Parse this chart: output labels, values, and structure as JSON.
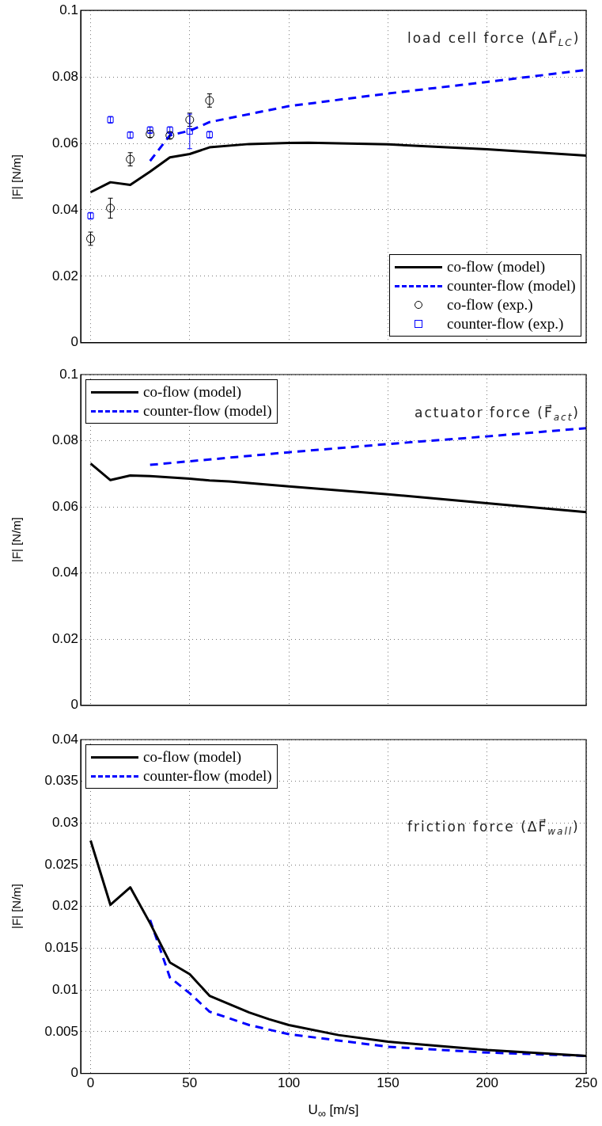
{
  "chart_data": [
    {
      "type": "line",
      "ylabel": "|F| [N/m]",
      "xlim": [
        -5,
        250
      ],
      "xticks": [
        0,
        50,
        100,
        150,
        200,
        250
      ],
      "ylim": [
        0,
        0.1
      ],
      "yticks": [
        0,
        0.02,
        0.04,
        0.06,
        0.08,
        0.1
      ],
      "grid": true,
      "legend": "bottom right",
      "tick_labels": "y",
      "annotations": [
        "load cell force (ΔF⃗$_{LC}$)"
      ],
      "series": [
        {
          "name": "co-flow (model)",
          "type": "line",
          "color": "#000000",
          "line_style": "solid",
          "x": [
            0,
            10,
            20,
            30,
            40,
            50,
            60,
            80,
            100,
            110,
            150,
            200,
            250
          ],
          "values": [
            0.0453,
            0.0483,
            0.0475,
            0.0515,
            0.0558,
            0.0568,
            0.0588,
            0.0598,
            0.0601,
            0.0602,
            0.0597,
            0.0582,
            0.0563
          ]
        },
        {
          "name": "counter-flow (model)",
          "type": "line",
          "color": "#0000ff",
          "line_style": "dashed",
          "x": [
            30,
            40,
            50,
            60,
            100,
            150,
            200,
            250
          ],
          "values": [
            0.0547,
            0.0624,
            0.0638,
            0.0664,
            0.0712,
            0.075,
            0.0785,
            0.0821
          ]
        },
        {
          "name": "co-flow (exp.)",
          "type": "scatter",
          "color": "#000000",
          "marker": "circle",
          "x": [
            0,
            10,
            20,
            30,
            40,
            50,
            60
          ],
          "values": [
            0.0313,
            0.0405,
            0.0552,
            0.0628,
            0.0624,
            0.0671,
            0.0729
          ],
          "errors": [
            0.002,
            0.003,
            0.002,
            0.001,
            0.001,
            0.002,
            0.002
          ]
        },
        {
          "name": "counter-flow (exp.)",
          "type": "scatter",
          "color": "#0000ff",
          "marker": "square",
          "x": [
            0,
            10,
            20,
            30,
            40,
            50,
            60
          ],
          "values": [
            0.0382,
            0.0671,
            0.0625,
            0.064,
            0.064,
            0.0636,
            0.0626
          ],
          "errors": [
            0.001,
            0.001,
            0.001,
            0.001,
            0.001,
            0.0052,
            0.001
          ]
        }
      ]
    },
    {
      "type": "line",
      "ylabel": "|F| [N/m]",
      "xlim": [
        -5,
        250
      ],
      "xticks": [
        0,
        50,
        100,
        150,
        200,
        250
      ],
      "ylim": [
        0,
        0.1
      ],
      "yticks": [
        0,
        0.02,
        0.04,
        0.06,
        0.08,
        0.1
      ],
      "grid": true,
      "legend": "top left",
      "tick_labels": "y",
      "annotations": [
        "actuator force (F⃗$_{act}$)"
      ],
      "series": [
        {
          "name": "co-flow (model)",
          "type": "line",
          "color": "#000000",
          "line_style": "solid",
          "x": [
            0,
            10,
            20,
            30,
            50,
            60,
            70,
            100,
            150,
            200,
            250
          ],
          "values": [
            0.0731,
            0.0681,
            0.0695,
            0.0693,
            0.0685,
            0.068,
            0.0677,
            0.0662,
            0.0638,
            0.0611,
            0.0584
          ]
        },
        {
          "name": "counter-flow (model)",
          "type": "line",
          "color": "#0000ff",
          "line_style": "dashed",
          "x": [
            30,
            100,
            150,
            200,
            250
          ],
          "values": [
            0.0727,
            0.0765,
            0.079,
            0.0813,
            0.0838
          ]
        }
      ]
    },
    {
      "type": "line",
      "xlabel": "U$_{∞}$ [m/s]",
      "ylabel": "|F| [N/m]",
      "xlim": [
        -5,
        250
      ],
      "xticks": [
        0,
        50,
        100,
        150,
        200,
        250
      ],
      "ylim": [
        0,
        0.04
      ],
      "yticks": [
        0,
        0.005,
        0.01,
        0.015,
        0.02,
        0.025,
        0.03,
        0.035,
        0.04
      ],
      "grid": true,
      "legend": "top left",
      "annotations": [
        "friction force (ΔF⃗$_{wall}$)"
      ],
      "series": [
        {
          "name": "co-flow (model)",
          "type": "line",
          "color": "#000000",
          "line_style": "solid",
          "x": [
            0,
            10,
            20,
            30,
            40,
            50,
            60,
            70,
            80,
            90,
            100,
            125,
            150,
            200,
            250
          ],
          "values": [
            0.0279,
            0.0202,
            0.0223,
            0.018,
            0.0133,
            0.0119,
            0.0093,
            0.0083,
            0.0073,
            0.0065,
            0.0058,
            0.0046,
            0.0038,
            0.0028,
            0.0021
          ]
        },
        {
          "name": "counter-flow (model)",
          "type": "line",
          "color": "#0000ff",
          "line_style": "dashed",
          "x": [
            30,
            40,
            50,
            60,
            80,
            100,
            150,
            200,
            250
          ],
          "values": [
            0.0184,
            0.0115,
            0.0096,
            0.0074,
            0.0058,
            0.0047,
            0.0032,
            0.0025,
            0.0021
          ]
        }
      ]
    }
  ]
}
